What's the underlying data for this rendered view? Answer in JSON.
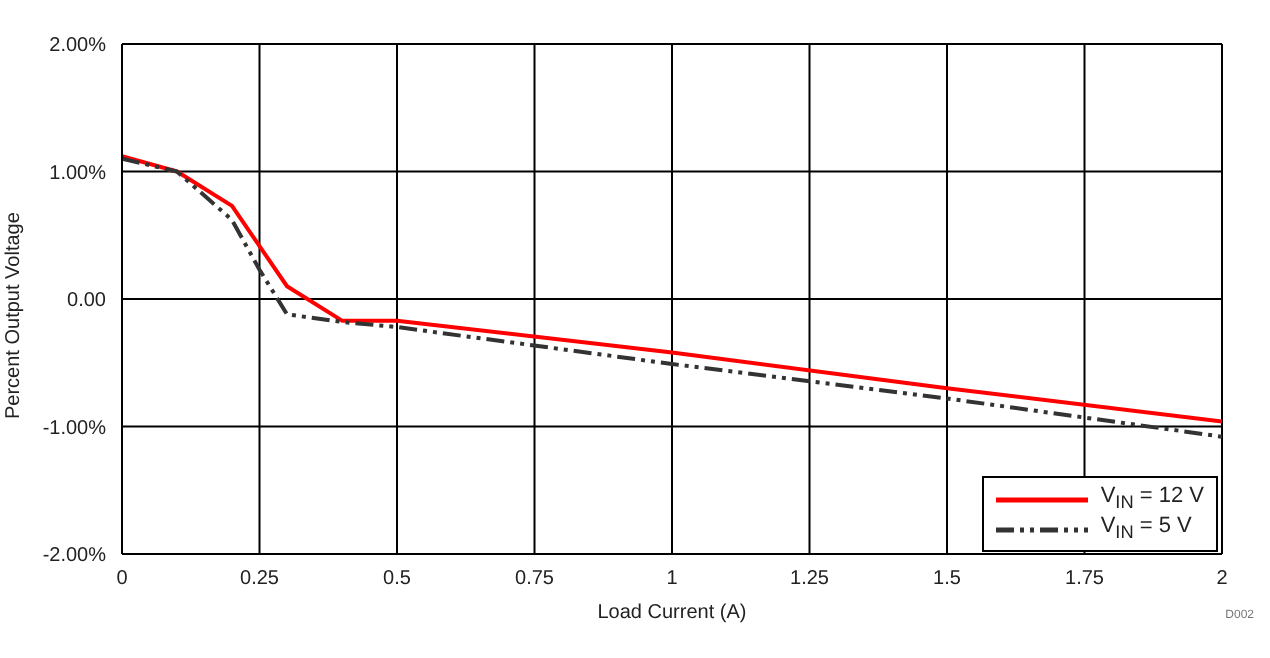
{
  "chart_data": {
    "type": "line",
    "xlabel": "Load Current (A)",
    "ylabel": "Percent Output Voltage",
    "series": [
      {
        "name": "V$_{IN}$ = 12 V",
        "color": "#ff0000",
        "line_style": "solid",
        "x": [
          0,
          0.1,
          0.2,
          0.3,
          0.4,
          0.5,
          1,
          1.5,
          2
        ],
        "values": [
          1.12,
          1.0,
          0.73,
          0.1,
          -0.17,
          -0.17,
          -0.42,
          -0.7,
          -0.96
        ]
      },
      {
        "name": "V$_{IN}$ = 5 V",
        "color": "#333333",
        "line_style": "dashed",
        "x": [
          0,
          0.1,
          0.2,
          0.25,
          0.3,
          0.4,
          0.5,
          1,
          1.5,
          2
        ],
        "values": [
          1.1,
          1.0,
          0.62,
          0.23,
          -0.12,
          -0.18,
          -0.22,
          -0.51,
          -0.78,
          -1.08
        ]
      }
    ],
    "xlim": [
      0,
      2
    ],
    "xticks": [
      0,
      0.25,
      0.5,
      0.75,
      1,
      1.25,
      1.5,
      1.75,
      2
    ],
    "ylim": [
      -2,
      2
    ],
    "yticks": [
      {
        "value": -2,
        "label": "-2.00%"
      },
      {
        "value": -1,
        "label": "-1.00%"
      },
      {
        "value": 0,
        "label": "0.00"
      },
      {
        "value": 1,
        "label": "1.00%"
      },
      {
        "value": 2,
        "label": "2.00%"
      }
    ],
    "grid": true,
    "legend": "bottom right",
    "annotations": [
      "D002"
    ]
  }
}
